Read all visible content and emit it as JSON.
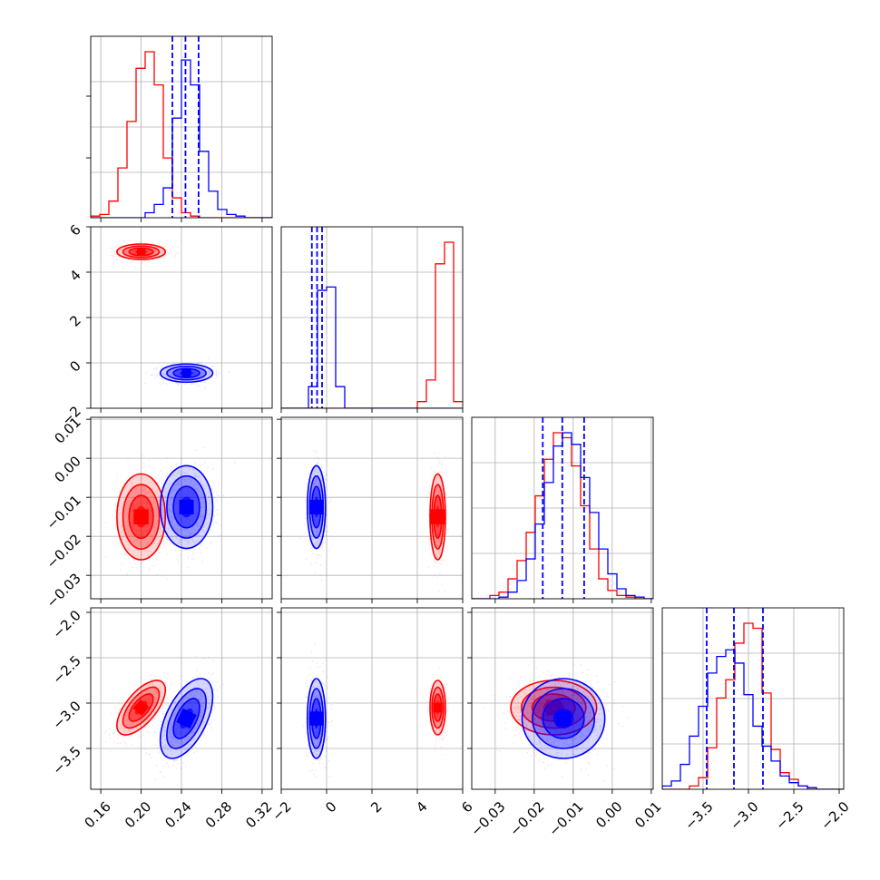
{
  "colors": {
    "series_a": "#ff0000",
    "series_b": "#0000ff",
    "grid": "#b0b0b0",
    "frame": "#000000"
  },
  "chart_data": {
    "type": "corner",
    "grid": true,
    "variables": [
      {
        "range": [
          0.15,
          0.33
        ],
        "ticks": [
          0.16,
          0.2,
          0.24,
          0.28,
          0.32
        ],
        "tick_labels": [
          "0.16",
          "0.20",
          "0.24",
          "0.28",
          "0.32"
        ]
      },
      {
        "range": [
          -2,
          6
        ],
        "ticks": [
          -2,
          0,
          2,
          4,
          6
        ],
        "tick_labels": [
          "−2",
          "0",
          "2",
          "4",
          "6"
        ]
      },
      {
        "range": [
          -0.036,
          0.0105
        ],
        "ticks": [
          -0.03,
          -0.02,
          -0.01,
          0.0,
          0.01
        ],
        "tick_labels": [
          "−0.03",
          "−0.02",
          "−0.01",
          "0.00",
          "0.01"
        ]
      },
      {
        "range": [
          -3.95,
          -1.95
        ],
        "ticks": [
          -3.5,
          -3.0,
          -2.5,
          -2.0
        ],
        "tick_labels": [
          "−3.5",
          "−3.0",
          "−2.5",
          "−2.0"
        ]
      }
    ],
    "series": [
      {
        "color": "#ff0000",
        "mean": [
          0.2,
          4.9,
          -0.015,
          -3.05
        ],
        "sd": [
          0.012,
          0.17,
          0.0055,
          0.15
        ],
        "corr": [
          [
            0,
            3,
            0.65
          ]
        ],
        "hist": [
          {
            "start": 0.15,
            "width": 0.009,
            "counts": [
              1,
              2,
              10,
              30,
              58,
              90,
              100,
              80,
              36,
              12,
              3,
              1,
              0,
              0,
              0,
              0,
              0,
              0,
              0,
              0
            ]
          },
          {
            "start": -2,
            "width": 0.4,
            "counts": [
              0,
              0,
              0,
              0,
              0,
              0,
              0,
              0,
              0,
              0,
              0,
              0,
              0,
              0,
              0,
              4,
              17,
              87,
              100,
              4
            ]
          },
          {
            "start": -0.036,
            "width": 0.002325,
            "counts": [
              0,
              0,
              2,
              4,
              12,
              23,
              40,
              62,
              84,
              100,
              97,
              80,
              56,
              30,
              12,
              5,
              2,
              1,
              0,
              0
            ]
          },
          {
            "start": -3.95,
            "width": 0.1,
            "counts": [
              0,
              0,
              0,
              2,
              7,
              25,
              55,
              66,
              88,
              100,
              97,
              58,
              24,
              10,
              6,
              2,
              0,
              0,
              0,
              0
            ]
          }
        ],
        "medians": [],
        "quantiles": []
      },
      {
        "color": "#0000ff",
        "mean": [
          0.245,
          -0.45,
          -0.0125,
          -3.17
        ],
        "sd": [
          0.013,
          0.2,
          0.0053,
          0.22
        ],
        "corr": [
          [
            0,
            3,
            0.55
          ]
        ],
        "hist": [
          {
            "start": 0.15,
            "width": 0.009,
            "counts": [
              0,
              0,
              0,
              0,
              0,
              0,
              3,
              8,
              18,
              60,
              95,
              80,
              40,
              16,
              5,
              2,
              1,
              0,
              0,
              0
            ]
          },
          {
            "start": -2,
            "width": 0.4,
            "counts": [
              0,
              0,
              0,
              13,
              71,
              73,
              13,
              0,
              0,
              0,
              0,
              0,
              0,
              0,
              0,
              0,
              0,
              0,
              0,
              0
            ]
          },
          {
            "start": -0.036,
            "width": 0.002325,
            "counts": [
              0,
              0,
              0,
              1,
              4,
              11,
              24,
              45,
              70,
              92,
              100,
              93,
              73,
              52,
              30,
              15,
              6,
              2,
              1,
              0
            ]
          },
          {
            "start": -3.95,
            "width": 0.1,
            "counts": [
              2,
              5,
              15,
              32,
              50,
              70,
              80,
              84,
              76,
              57,
              38,
              26,
              17,
              8,
              4,
              2,
              1,
              0,
              0,
              0
            ]
          }
        ],
        "medians": [
          0.244,
          -0.42,
          -0.0128,
          -3.16
        ],
        "quantiles": [
          [
            0.231,
            0.257
          ],
          [
            -0.65,
            -0.2
          ],
          [
            -0.0178,
            -0.0072
          ],
          [
            -3.46,
            -2.84
          ]
        ]
      }
    ]
  }
}
